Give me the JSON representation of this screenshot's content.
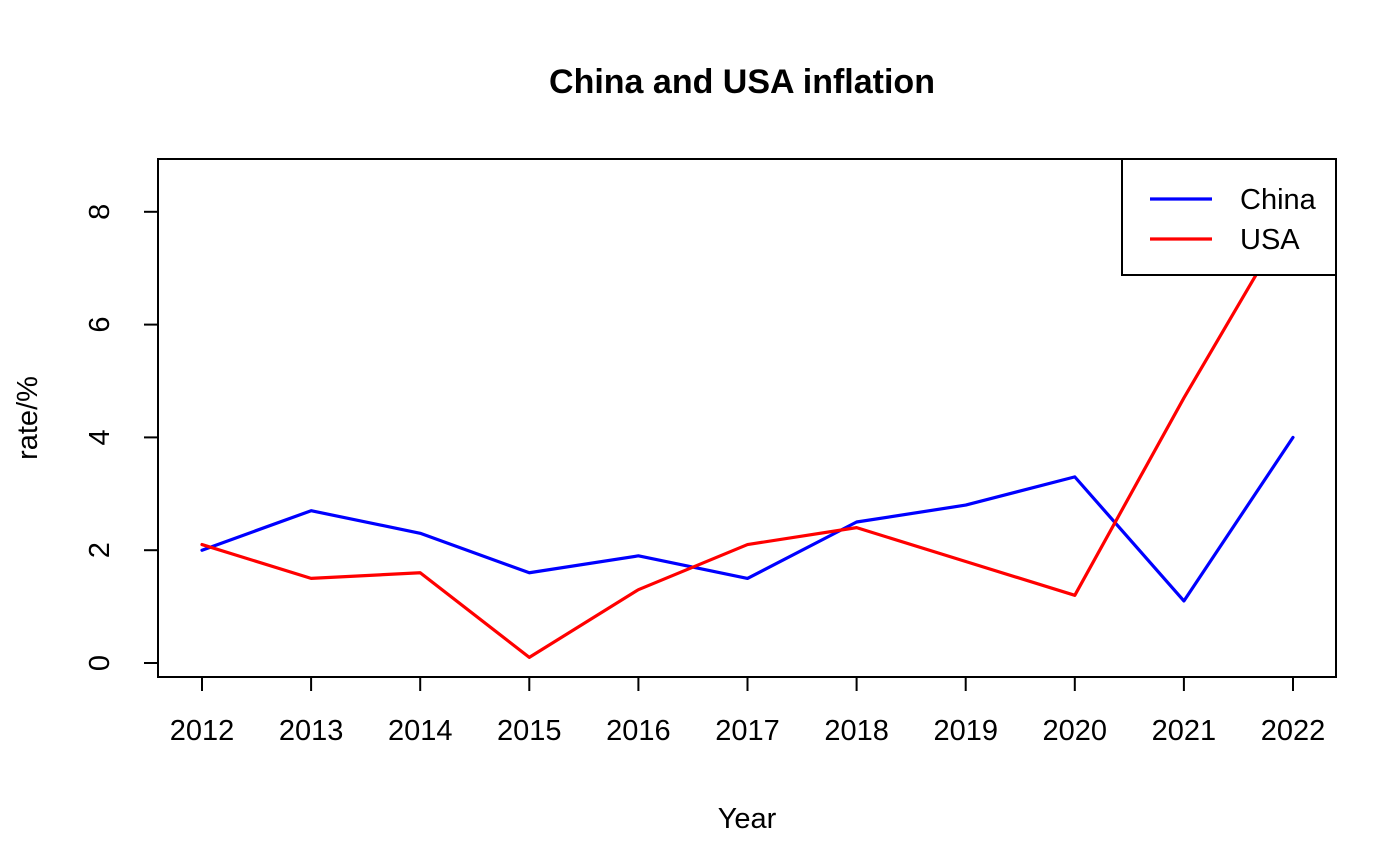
{
  "chart_data": {
    "type": "line",
    "title": "China and USA inflation",
    "xlabel": "Year",
    "ylabel": "rate/%",
    "x": [
      "2012",
      "2013",
      "2014",
      "2015",
      "2016",
      "2017",
      "2018",
      "2019",
      "2020",
      "2021",
      "2022"
    ],
    "yticks": [
      "0",
      "2",
      "4",
      "6",
      "8"
    ],
    "ylim": [
      -0.25,
      8.9
    ],
    "grid": false,
    "legend_position": "top-right",
    "series": [
      {
        "name": "China",
        "color": "#0000FF",
        "values": [
          2.0,
          2.7,
          2.3,
          1.6,
          1.9,
          1.5,
          2.5,
          2.8,
          3.3,
          1.1,
          4.0
        ]
      },
      {
        "name": "USA",
        "color": "#FF0000",
        "values": [
          2.1,
          1.5,
          1.6,
          0.1,
          1.3,
          2.1,
          2.4,
          1.8,
          1.2,
          4.7,
          8.0
        ]
      }
    ]
  }
}
